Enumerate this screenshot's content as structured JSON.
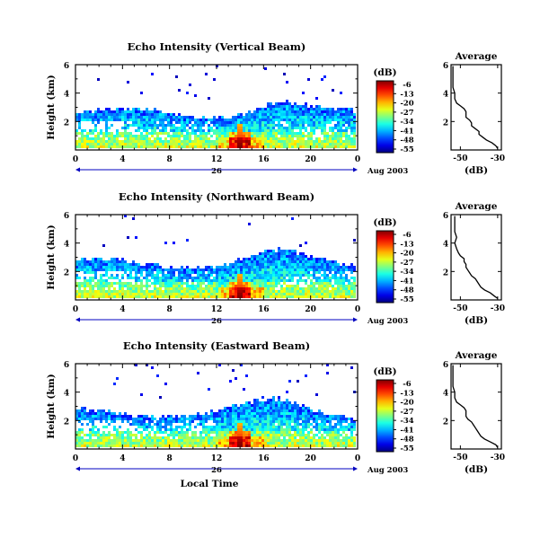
{
  "chart_data": [
    {
      "type": "heatmap",
      "title": "Echo Intensity (Vertical Beam)",
      "ylabel": "Height (km)",
      "xlim": [
        0,
        24
      ],
      "ylim": [
        0,
        6
      ],
      "x_ticks": [
        "0",
        "4",
        "8",
        "12",
        "16",
        "20",
        "0"
      ],
      "y_ticks": [
        "2",
        "4",
        "6"
      ],
      "date_day": "26",
      "date_label": "Aug 2003",
      "colorbar": {
        "label": "(dB)",
        "ticks": [
          "-6",
          "-13",
          "-20",
          "-27",
          "-34",
          "-41",
          "-48",
          "-55"
        ]
      },
      "average": {
        "title": "Average",
        "xlabel": "(dB)",
        "x_ticks": [
          "-50",
          "-30"
        ],
        "y_ticks": [
          "2",
          "4",
          "6"
        ],
        "xlim": [
          -55,
          -28
        ],
        "height_km": [
          0.1,
          0.3,
          0.5,
          0.7,
          0.9,
          1.1,
          1.3,
          1.5,
          1.7,
          1.9,
          2.1,
          2.3,
          2.5,
          2.7,
          2.9,
          3.1,
          3.3,
          3.6,
          4.0,
          4.4,
          4.8,
          5.2,
          5.6,
          5.9
        ],
        "intensity_db": [
          -30,
          -31,
          -33,
          -36,
          -38,
          -40,
          -40,
          -42,
          -44,
          -44,
          -45,
          -47,
          -47,
          -47,
          -48,
          -50,
          -52,
          -53,
          -53,
          -54,
          -54,
          -54,
          -54,
          -54
        ]
      }
    },
    {
      "type": "heatmap",
      "title": "Echo Intensity (Northward Beam)",
      "ylabel": "Height (km)",
      "xlim": [
        0,
        24
      ],
      "ylim": [
        0,
        6
      ],
      "x_ticks": [
        "0",
        "4",
        "8",
        "12",
        "16",
        "20",
        "0"
      ],
      "y_ticks": [
        "2",
        "4",
        "6"
      ],
      "date_day": "26",
      "date_label": "Aug 2003",
      "colorbar": {
        "label": "(dB)",
        "ticks": [
          "-6",
          "-13",
          "-20",
          "-27",
          "-34",
          "-41",
          "-48",
          "-55"
        ]
      },
      "average": {
        "title": "Average",
        "xlabel": "(dB)",
        "x_ticks": [
          "-50",
          "-30"
        ],
        "y_ticks": [
          "2",
          "4",
          "6"
        ],
        "xlim": [
          -55,
          -28
        ],
        "height_km": [
          0.1,
          0.3,
          0.5,
          0.7,
          0.9,
          1.1,
          1.3,
          1.5,
          1.7,
          1.9,
          2.1,
          2.3,
          2.5,
          2.7,
          2.9,
          3.1,
          3.3,
          3.6,
          4.0,
          4.4,
          4.8,
          5.2,
          5.6,
          5.9
        ],
        "intensity_db": [
          -30,
          -32,
          -34,
          -37,
          -39,
          -40,
          -41,
          -42,
          -44,
          -45,
          -46,
          -47,
          -47,
          -48,
          -48,
          -50,
          -51,
          -52,
          -53,
          -52,
          -53,
          -53,
          -53,
          -53
        ]
      }
    },
    {
      "type": "heatmap",
      "title": "Echo Intensity (Eastward Beam)",
      "ylabel": "Height (km)",
      "xlim": [
        0,
        24
      ],
      "ylim": [
        0,
        6
      ],
      "x_ticks": [
        "0",
        "4",
        "8",
        "12",
        "16",
        "20",
        "0"
      ],
      "y_ticks": [
        "2",
        "4",
        "6"
      ],
      "date_day": "26",
      "date_label": "Aug 2003",
      "xlabel": "Local Time",
      "colorbar": {
        "label": "(dB)",
        "ticks": [
          "-6",
          "-13",
          "-20",
          "-27",
          "-34",
          "-41",
          "-48",
          "-55"
        ]
      },
      "average": {
        "title": "Average",
        "xlabel": "(dB)",
        "x_ticks": [
          "-50",
          "-30"
        ],
        "y_ticks": [
          "2",
          "4",
          "6"
        ],
        "xlim": [
          -55,
          -28
        ],
        "height_km": [
          0.1,
          0.3,
          0.5,
          0.7,
          0.9,
          1.1,
          1.3,
          1.5,
          1.7,
          1.9,
          2.1,
          2.3,
          2.5,
          2.7,
          2.9,
          3.1,
          3.3,
          3.6,
          4.0,
          4.4,
          4.8,
          5.2,
          5.6,
          5.9
        ],
        "intensity_db": [
          -30,
          -31,
          -34,
          -37,
          -39,
          -40,
          -41,
          -42,
          -43,
          -44,
          -46,
          -47,
          -47,
          -47,
          -48,
          -50,
          -52,
          -53,
          -53,
          -54,
          -54,
          -54,
          -54,
          -54
        ]
      }
    }
  ]
}
